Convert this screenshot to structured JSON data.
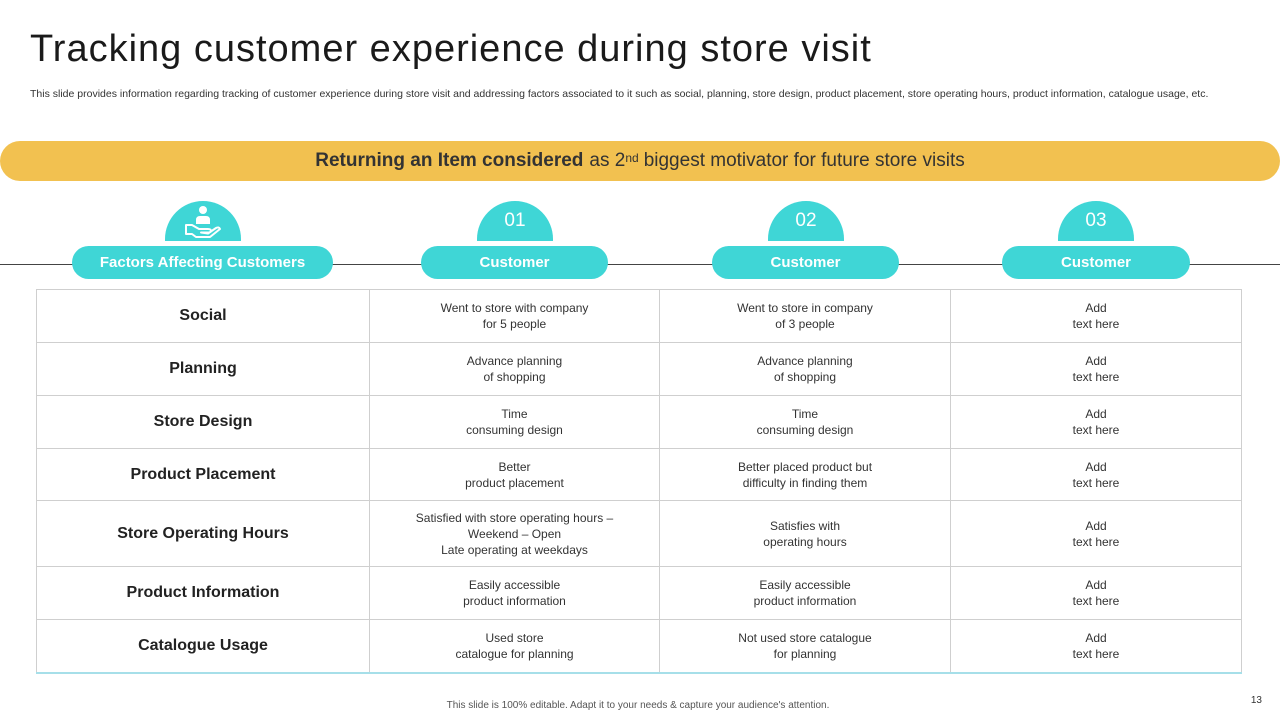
{
  "title": "Tracking customer experience during store visit",
  "subtitle": "This slide provides information regarding tracking of customer experience during store visit and addressing factors associated to it such as social, planning, store design, product placement, store operating hours, product information, catalogue usage, etc.",
  "banner": {
    "bold_text": "Returning an Item considered",
    "text_before_sup": "as 2",
    "sup": "nd",
    "text_after_sup": "biggest motivator for future store visits"
  },
  "columns": [
    {
      "tab_icon": "helping-hand-person-icon",
      "header": "Factors Affecting Customers"
    },
    {
      "tab_label": "01",
      "header": "Customer"
    },
    {
      "tab_label": "02",
      "header": "Customer"
    },
    {
      "tab_label": "03",
      "header": "Customer"
    }
  ],
  "rows": [
    {
      "factor": "Social",
      "cells": [
        [
          "Went to store with company",
          "for 5 people"
        ],
        [
          "Went to store in company",
          "of 3 people"
        ],
        [
          "Add",
          "text here"
        ]
      ]
    },
    {
      "factor": "Planning",
      "cells": [
        [
          "Advance planning",
          "of shopping"
        ],
        [
          "Advance planning",
          "of shopping"
        ],
        [
          "Add",
          "text here"
        ]
      ]
    },
    {
      "factor": "Store Design",
      "cells": [
        [
          "Time",
          "consuming design"
        ],
        [
          "Time",
          "consuming design"
        ],
        [
          "Add",
          "text here"
        ]
      ]
    },
    {
      "factor": "Product Placement",
      "cells": [
        [
          "Better",
          "product placement"
        ],
        [
          "Better placed product but",
          "difficulty in finding them"
        ],
        [
          "Add",
          "text here"
        ]
      ]
    },
    {
      "factor": "Store Operating Hours",
      "cells": [
        [
          "Satisfied with store operating hours –",
          "Weekend – Open",
          "Late operating at weekdays"
        ],
        [
          "Satisfies with",
          "operating hours"
        ],
        [
          "Add",
          "text here"
        ]
      ]
    },
    {
      "factor": "Product Information",
      "cells": [
        [
          "Easily accessible",
          "product information"
        ],
        [
          "Easily accessible",
          "product information"
        ],
        [
          "Add",
          "text here"
        ]
      ]
    },
    {
      "factor": "Catalogue Usage",
      "cells": [
        [
          "Used store",
          "catalogue for planning"
        ],
        [
          "Not used store catalogue",
          "for planning"
        ],
        [
          "Add",
          "text here"
        ]
      ]
    }
  ],
  "footer": "This slide is 100% editable. Adapt it to your needs & capture your audience's attention.",
  "page_number": "13",
  "colors": {
    "accent_teal": "#3fd6d6",
    "banner_yellow": "#f2c150",
    "table_bottom_border": "#a6dfe9"
  }
}
